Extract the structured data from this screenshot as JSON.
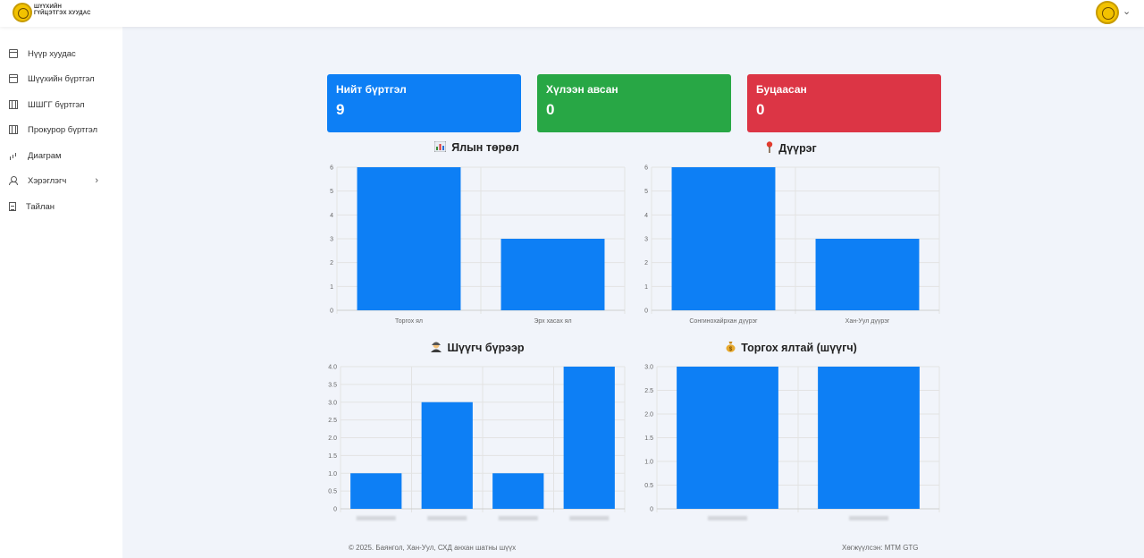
{
  "header": {
    "logo_line1": "ШҮҮХИЙН",
    "logo_line2": "ГҮЙЦЭТГЭХ ХУУДАС"
  },
  "sidebar": {
    "items": [
      {
        "label": "Нүүр хуудас",
        "icon": "grid-icon"
      },
      {
        "label": "Шүүхийн бүртгэл",
        "icon": "table-icon"
      },
      {
        "label": "ШШГГ бүртгэл",
        "icon": "columns-icon"
      },
      {
        "label": "Прокурор бүртгэл",
        "icon": "columns-icon"
      },
      {
        "label": "Диаграм",
        "icon": "bar-chart-icon"
      },
      {
        "label": "Хэрэглэгч",
        "icon": "user-icon",
        "has_submenu": true
      },
      {
        "label": "Тайлан",
        "icon": "document-icon"
      }
    ]
  },
  "cards": [
    {
      "title": "Нийт бүртгэл",
      "value": "9",
      "color": "#0d7ff5"
    },
    {
      "title": "Хүлээн авсан",
      "value": "0",
      "color": "#28a745"
    },
    {
      "title": "Буцаасан",
      "value": "0",
      "color": "#dc3545"
    }
  ],
  "chart_data": [
    {
      "type": "bar",
      "title": "Ялын төрөл",
      "icon": "bar-chart-emoji",
      "categories": [
        "Торгох ял",
        "Эрх хасах ял"
      ],
      "values": [
        6,
        3
      ],
      "ylim": [
        0,
        6
      ],
      "yticks": [
        "0",
        "1",
        "2",
        "3",
        "4",
        "5",
        "6"
      ],
      "grid": true,
      "color": "#0d7ff5"
    },
    {
      "type": "bar",
      "title": "Дүүрэг",
      "icon": "pin-emoji",
      "categories": [
        "Сонгинохайрхан дүүрэг",
        "Хан-Уул дүүрэг"
      ],
      "values": [
        6,
        3
      ],
      "ylim": [
        0,
        6
      ],
      "yticks": [
        "0",
        "1",
        "2",
        "3",
        "4",
        "5",
        "6"
      ],
      "grid": true,
      "color": "#0d7ff5"
    },
    {
      "type": "bar",
      "title": "Шүүгч бүрээр",
      "icon": "judge-emoji",
      "categories": [
        "",
        "",
        "",
        ""
      ],
      "values": [
        1,
        3,
        1,
        4
      ],
      "ylim": [
        0,
        4
      ],
      "yticks": [
        "0",
        "0.5",
        "1.0",
        "1.5",
        "2.0",
        "2.5",
        "3.0",
        "3.5",
        "4.0"
      ],
      "grid": true,
      "color": "#0d7ff5"
    },
    {
      "type": "bar",
      "title": "Торгох ялтай (шүүгч)",
      "icon": "money-bag-emoji",
      "categories": [
        "",
        ""
      ],
      "values": [
        3,
        3
      ],
      "ylim": [
        0,
        3
      ],
      "yticks": [
        "0",
        "0.5",
        "1.0",
        "1.5",
        "2.0",
        "2.5",
        "3.0"
      ],
      "grid": true,
      "color": "#0d7ff5"
    }
  ],
  "footer": {
    "left": "© 2025. Баянгол, Хан-Уул, СХД анхан шатны шүүх",
    "right": "Хөгжүүлсэн: МТМ GTG"
  }
}
